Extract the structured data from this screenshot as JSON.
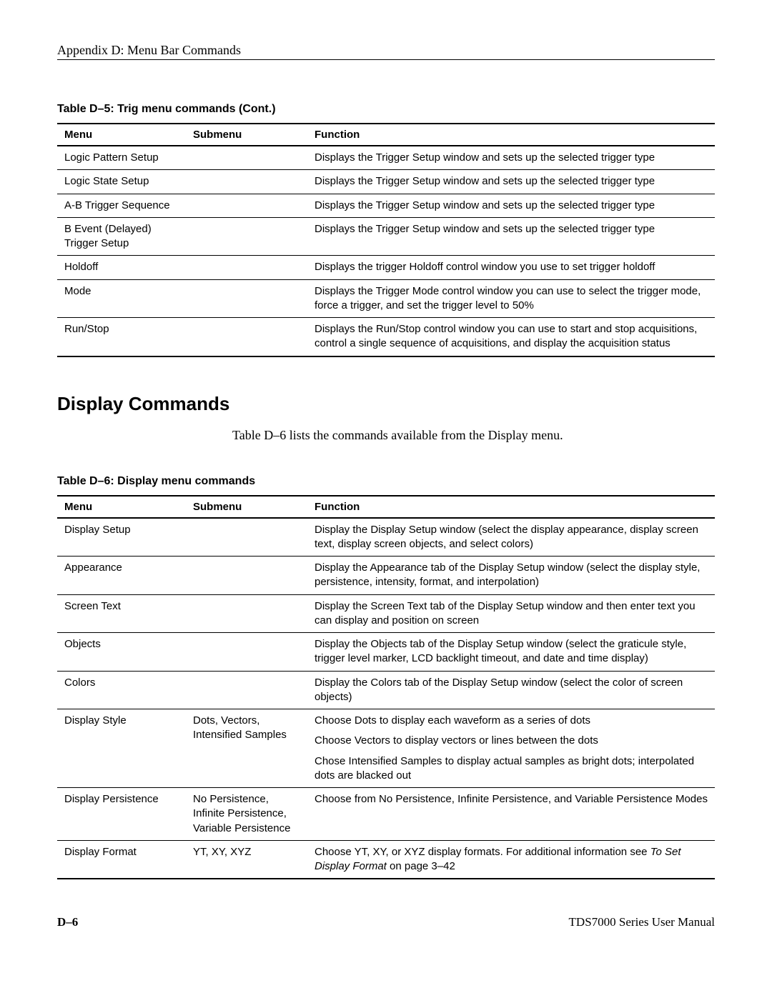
{
  "header": "Appendix D: Menu Bar Commands",
  "table1": {
    "caption": "Table D–5: Trig menu commands (Cont.)",
    "headers": {
      "menu": "Menu",
      "submenu": "Submenu",
      "function": "Function"
    },
    "rows": [
      {
        "menu": "Logic Pattern Setup",
        "submenu": "",
        "function": "Displays the Trigger Setup window and sets up the selected trigger type"
      },
      {
        "menu": "Logic State Setup",
        "submenu": "",
        "function": "Displays the Trigger Setup window and sets up the selected trigger type"
      },
      {
        "menu": "A-B Trigger Sequence",
        "submenu": "",
        "function": "Displays the Trigger Setup window and sets up the selected trigger type"
      },
      {
        "menu": "B Event (Delayed) Trigger Setup",
        "submenu": "",
        "function": "Displays the Trigger Setup window and sets up the selected trigger type"
      },
      {
        "menu": "Holdoff",
        "submenu": "",
        "function": "Displays the trigger Holdoff control window you use to set trigger holdoff"
      },
      {
        "menu": "Mode",
        "submenu": "",
        "function": "Displays the Trigger Mode control window you can use to select the trigger mode, force a trigger, and set the trigger level to 50%"
      },
      {
        "menu": "Run/Stop",
        "submenu": "",
        "function": "Displays the Run/Stop control window you can use to start and stop acquisitions, control a single sequence of acquisitions, and display the acquisition status"
      }
    ]
  },
  "section": {
    "heading": "Display Commands",
    "intro": "Table D–6 lists the commands available from the Display menu."
  },
  "table2": {
    "caption": "Table D–6: Display menu commands",
    "headers": {
      "menu": "Menu",
      "submenu": "Submenu",
      "function": "Function"
    },
    "rows": [
      {
        "menu": "Display Setup",
        "submenu": "",
        "function_paras": [
          "Display the Display Setup window (select the display appearance, display screen text, display screen objects, and select colors)"
        ]
      },
      {
        "menu": "Appearance",
        "submenu": "",
        "function_paras": [
          "Display the Appearance tab of the Display Setup window (select the display style, persistence, intensity, format, and interpolation)"
        ]
      },
      {
        "menu": "Screen Text",
        "submenu": "",
        "function_paras": [
          "Display the Screen Text tab of the Display Setup window and then enter text you can display and position on screen"
        ]
      },
      {
        "menu": "Objects",
        "submenu": "",
        "function_paras": [
          "Display the Objects tab of the Display Setup window (select the graticule style, trigger level marker, LCD backlight timeout, and date and time display)"
        ]
      },
      {
        "menu": "Colors",
        "submenu": "",
        "function_paras": [
          "Display the Colors tab of the Display Setup window (select the color of screen objects)"
        ]
      },
      {
        "menu": "Display Style",
        "submenu": "Dots, Vectors, Intensified Samples",
        "function_paras": [
          "Choose Dots to display each waveform as a series of dots",
          "Choose Vectors to display vectors or lines between the dots",
          "Chose Intensified Samples to display actual samples as bright dots; interpolated dots are blacked out"
        ]
      },
      {
        "menu": "Display Persistence",
        "submenu": "No Persistence, Infinite Persistence, Variable Persistence",
        "function_paras": [
          "Choose from No Persistence, Infinite Persistence, and Variable Persistence Modes"
        ]
      },
      {
        "menu": "Display Format",
        "submenu": "YT, XY, XYZ",
        "function_special": {
          "prefix": "Choose YT, XY, or XYZ display formats. For additional information see ",
          "italic": "To Set Display Format",
          "suffix": " on page 3–42"
        }
      }
    ]
  },
  "footer": {
    "page": "D–6",
    "manual": "TDS7000 Series User Manual"
  }
}
